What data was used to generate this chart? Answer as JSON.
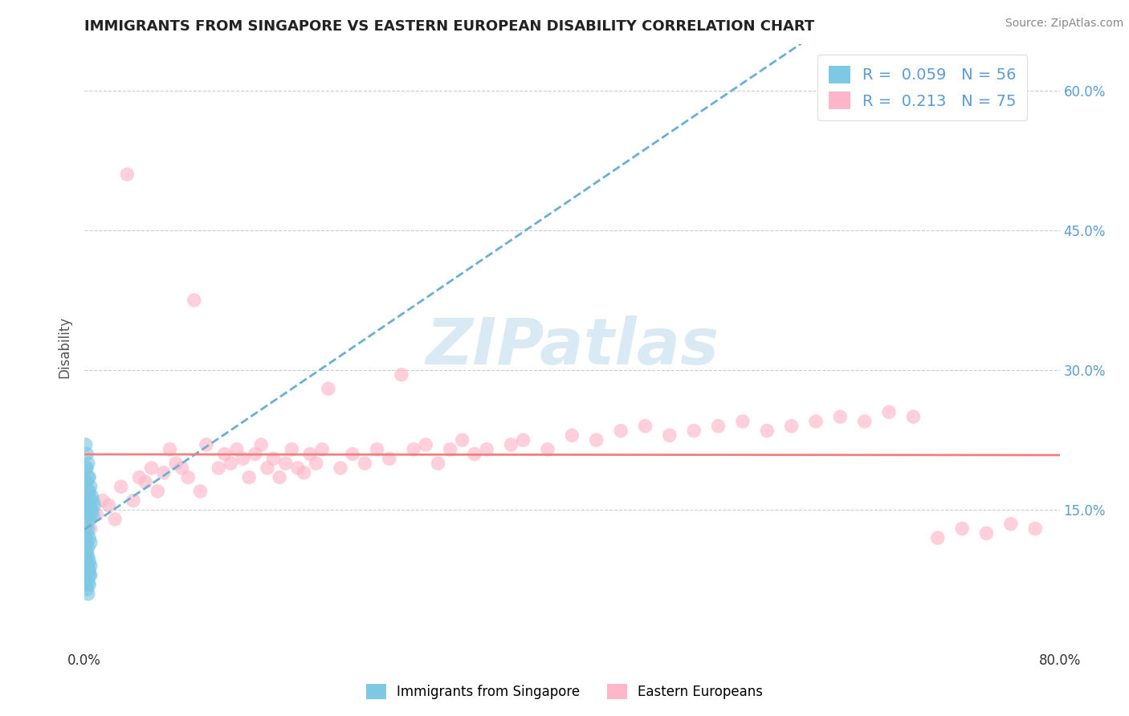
{
  "title": "IMMIGRANTS FROM SINGAPORE VS EASTERN EUROPEAN DISABILITY CORRELATION CHART",
  "source": "Source: ZipAtlas.com",
  "ylabel": "Disability",
  "xlim": [
    0.0,
    0.8
  ],
  "ylim": [
    0.0,
    0.65
  ],
  "yticks": [
    0.0,
    0.15,
    0.3,
    0.45,
    0.6
  ],
  "right_ytick_labels": [
    "15.0%",
    "30.0%",
    "45.0%",
    "60.0%"
  ],
  "color_blue": "#7ec8e3",
  "color_pink": "#ffb6c8",
  "color_blue_line": "#6baed6",
  "color_pink_line": "#f08080",
  "watermark_color": "#daeaf5",
  "background_color": "#ffffff",
  "legend_label1": "Immigrants from Singapore",
  "legend_label2": "Eastern Europeans",
  "legend_text_color": "#5b9bd5",
  "title_color": "#222222",
  "ylabel_color": "#555555",
  "grid_color": "#cccccc",
  "tick_label_color": "#5b9bd5",
  "singapore_x": [
    0.001,
    0.001,
    0.001,
    0.001,
    0.001,
    0.002,
    0.002,
    0.002,
    0.002,
    0.002,
    0.002,
    0.002,
    0.003,
    0.003,
    0.003,
    0.003,
    0.003,
    0.003,
    0.004,
    0.004,
    0.004,
    0.004,
    0.005,
    0.005,
    0.005,
    0.006,
    0.006,
    0.007,
    0.007,
    0.008,
    0.001,
    0.001,
    0.002,
    0.002,
    0.002,
    0.003,
    0.003,
    0.003,
    0.004,
    0.004,
    0.001,
    0.001,
    0.002,
    0.002,
    0.003,
    0.003,
    0.004,
    0.004,
    0.005,
    0.005,
    0.001,
    0.002,
    0.002,
    0.003,
    0.004,
    0.005
  ],
  "singapore_y": [
    0.22,
    0.195,
    0.18,
    0.165,
    0.15,
    0.21,
    0.195,
    0.18,
    0.165,
    0.155,
    0.145,
    0.135,
    0.2,
    0.185,
    0.17,
    0.16,
    0.145,
    0.13,
    0.185,
    0.17,
    0.155,
    0.14,
    0.175,
    0.16,
    0.145,
    0.165,
    0.15,
    0.16,
    0.145,
    0.155,
    0.08,
    0.07,
    0.09,
    0.075,
    0.065,
    0.085,
    0.072,
    0.06,
    0.08,
    0.07,
    0.11,
    0.1,
    0.105,
    0.095,
    0.1,
    0.09,
    0.095,
    0.085,
    0.09,
    0.08,
    0.12,
    0.115,
    0.125,
    0.11,
    0.12,
    0.115
  ],
  "eastern_x": [
    0.005,
    0.01,
    0.015,
    0.02,
    0.025,
    0.03,
    0.035,
    0.04,
    0.045,
    0.05,
    0.055,
    0.06,
    0.065,
    0.07,
    0.075,
    0.08,
    0.085,
    0.09,
    0.095,
    0.1,
    0.11,
    0.115,
    0.12,
    0.125,
    0.13,
    0.135,
    0.14,
    0.145,
    0.15,
    0.155,
    0.16,
    0.165,
    0.17,
    0.175,
    0.18,
    0.185,
    0.19,
    0.195,
    0.2,
    0.21,
    0.22,
    0.23,
    0.24,
    0.25,
    0.26,
    0.27,
    0.28,
    0.29,
    0.3,
    0.31,
    0.32,
    0.33,
    0.35,
    0.36,
    0.38,
    0.4,
    0.42,
    0.44,
    0.46,
    0.48,
    0.5,
    0.52,
    0.54,
    0.56,
    0.58,
    0.6,
    0.62,
    0.64,
    0.66,
    0.68,
    0.7,
    0.72,
    0.74,
    0.76,
    0.78
  ],
  "eastern_y": [
    0.13,
    0.145,
    0.16,
    0.155,
    0.14,
    0.175,
    0.51,
    0.16,
    0.185,
    0.18,
    0.195,
    0.17,
    0.19,
    0.215,
    0.2,
    0.195,
    0.185,
    0.375,
    0.17,
    0.22,
    0.195,
    0.21,
    0.2,
    0.215,
    0.205,
    0.185,
    0.21,
    0.22,
    0.195,
    0.205,
    0.185,
    0.2,
    0.215,
    0.195,
    0.19,
    0.21,
    0.2,
    0.215,
    0.28,
    0.195,
    0.21,
    0.2,
    0.215,
    0.205,
    0.295,
    0.215,
    0.22,
    0.2,
    0.215,
    0.225,
    0.21,
    0.215,
    0.22,
    0.225,
    0.215,
    0.23,
    0.225,
    0.235,
    0.24,
    0.23,
    0.235,
    0.24,
    0.245,
    0.235,
    0.24,
    0.245,
    0.25,
    0.245,
    0.255,
    0.25,
    0.12,
    0.13,
    0.125,
    0.135,
    0.13
  ]
}
